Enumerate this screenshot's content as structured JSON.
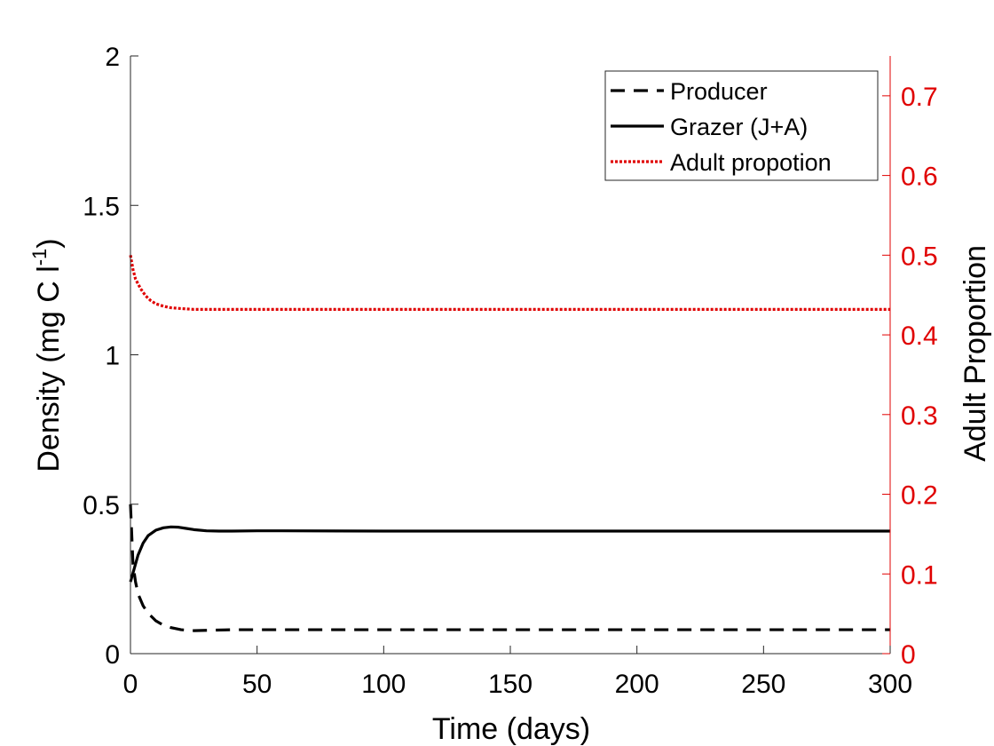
{
  "chart_data": {
    "type": "line",
    "xlabel": "Time (days)",
    "ylabel": "Density (mg C l",
    "ylabel_sup": "-1",
    "ylabel_close": ")",
    "y2label": "Adult Proportion",
    "xlim": [
      0,
      300
    ],
    "ylim": [
      0,
      2
    ],
    "y2lim": [
      0,
      0.75
    ],
    "xticks": [
      0,
      50,
      100,
      150,
      200,
      250,
      300
    ],
    "xtick_labels": [
      "0",
      "50",
      "100",
      "150",
      "200",
      "250",
      "300"
    ],
    "yticks": [
      0,
      0.5,
      1,
      1.5,
      2
    ],
    "ytick_labels": [
      "0",
      "0.5",
      "1",
      "1.5",
      "2"
    ],
    "y2ticks": [
      0,
      0.1,
      0.2,
      0.3,
      0.4,
      0.5,
      0.6,
      0.7
    ],
    "y2tick_labels": [
      "0",
      "0.1",
      "0.2",
      "0.3",
      "0.4",
      "0.5",
      "0.6",
      "0.7"
    ],
    "grid": false,
    "legend_position": "top-right",
    "series": [
      {
        "name": "Producer",
        "axis": "left",
        "style": "dashed",
        "color": "#000000",
        "x": [
          0,
          1,
          2,
          3,
          5,
          7,
          10,
          13,
          16,
          20,
          25,
          30,
          40,
          50,
          75,
          100,
          150,
          200,
          250,
          300
        ],
        "y": [
          0.5,
          0.3,
          0.24,
          0.2,
          0.16,
          0.135,
          0.11,
          0.095,
          0.087,
          0.08,
          0.077,
          0.078,
          0.08,
          0.08,
          0.08,
          0.08,
          0.08,
          0.08,
          0.08,
          0.08
        ]
      },
      {
        "name": "Grazer (J+A)",
        "axis": "left",
        "style": "solid",
        "color": "#000000",
        "x": [
          0,
          1,
          2,
          3,
          5,
          7,
          10,
          13,
          16,
          19,
          22,
          25,
          30,
          35,
          40,
          50,
          60,
          100,
          150,
          200,
          250,
          300
        ],
        "y": [
          0.24,
          0.27,
          0.3,
          0.33,
          0.37,
          0.395,
          0.413,
          0.421,
          0.424,
          0.423,
          0.419,
          0.415,
          0.411,
          0.41,
          0.41,
          0.411,
          0.411,
          0.41,
          0.41,
          0.41,
          0.41,
          0.41
        ]
      },
      {
        "name": "Adult propotion",
        "axis": "right",
        "style": "dotted",
        "color": "#e00000",
        "x": [
          0,
          1,
          2,
          4,
          6,
          8,
          10,
          13,
          16,
          20,
          25,
          30,
          50,
          100,
          150,
          200,
          250,
          300
        ],
        "y": [
          0.5,
          0.482,
          0.47,
          0.458,
          0.449,
          0.443,
          0.439,
          0.436,
          0.434,
          0.433,
          0.432,
          0.432,
          0.432,
          0.432,
          0.432,
          0.432,
          0.432,
          0.432
        ]
      }
    ]
  }
}
